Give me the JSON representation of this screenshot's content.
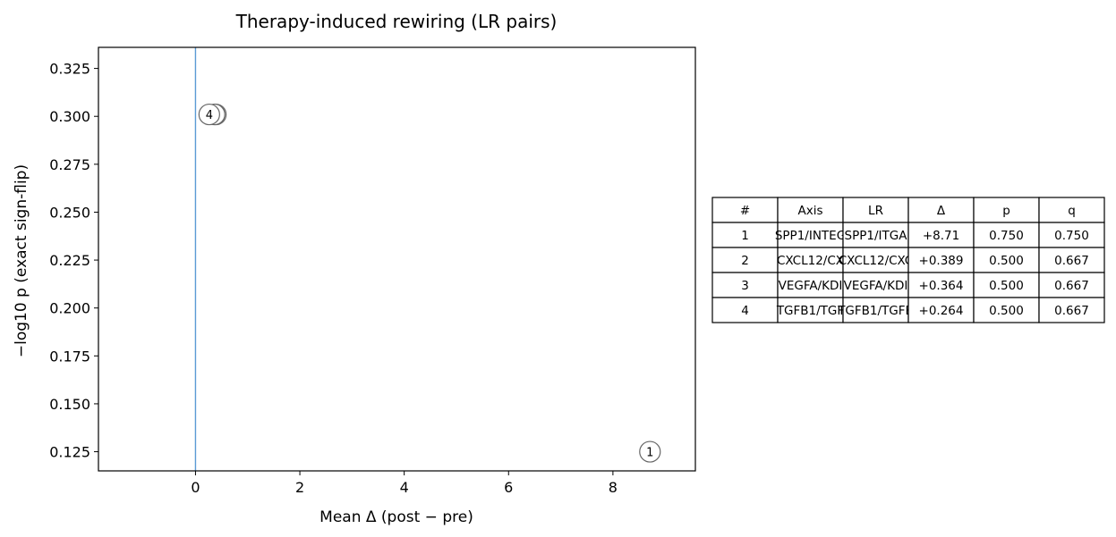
{
  "chart_data": {
    "type": "scatter",
    "title": "Therapy-induced rewiring (LR pairs)",
    "xlabel": "Mean Δ (post − pre)",
    "ylabel": "−log10 p (exact sign-flip)",
    "xlim": [
      -1.86,
      9.58
    ],
    "ylim": [
      0.115,
      0.336
    ],
    "x_ticks": [
      0,
      2,
      4,
      6,
      8
    ],
    "y_ticks": [
      0.125,
      0.15,
      0.175,
      0.2,
      0.225,
      0.25,
      0.275,
      0.3,
      0.325
    ],
    "x_tick_labels": [
      "0",
      "2",
      "4",
      "6",
      "8"
    ],
    "y_tick_labels": [
      "0.125",
      "0.150",
      "0.175",
      "0.200",
      "0.225",
      "0.250",
      "0.275",
      "0.300",
      "0.325"
    ],
    "vline_x": 0,
    "colors": {
      "vline": "#5b9bd5",
      "marker_edge": "#666666",
      "marker_fill": "#ffffff"
    },
    "points": [
      {
        "label": "1",
        "x": 8.71,
        "y": 0.125
      },
      {
        "label": "2",
        "x": 0.389,
        "y": 0.301
      },
      {
        "label": "3",
        "x": 0.364,
        "y": 0.301
      },
      {
        "label": "4",
        "x": 0.264,
        "y": 0.301
      }
    ],
    "grid": false
  },
  "table": {
    "columns": [
      "#",
      "Axis",
      "LR",
      "Δ",
      "p",
      "q"
    ],
    "rows": [
      [
        "1",
        "SPP1/INTEG",
        "SPP1/ITGA",
        "+8.71",
        "0.750",
        "0.750"
      ],
      [
        "2",
        "CXCL12/CX",
        "CXCL12/CXC",
        "+0.389",
        "0.500",
        "0.667"
      ],
      [
        "3",
        "VEGFA/KDI",
        "VEGFA/KDI",
        "+0.364",
        "0.500",
        "0.667"
      ],
      [
        "4",
        "TGFB1/TGF",
        "TGFB1/TGFB",
        "+0.264",
        "0.500",
        "0.667"
      ]
    ]
  }
}
